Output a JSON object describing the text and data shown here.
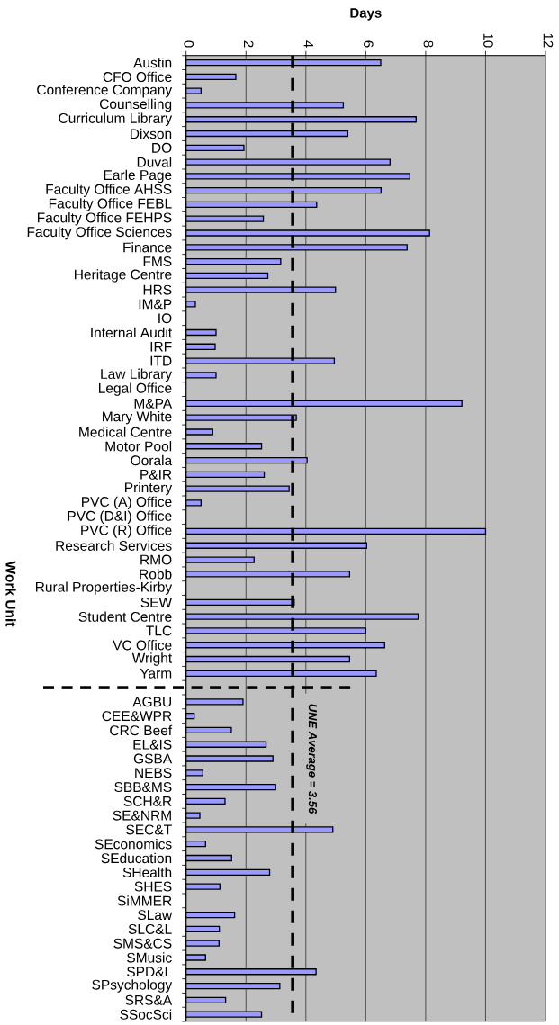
{
  "chart_data": {
    "type": "bar",
    "orientation": "horizontal",
    "xlabel": "Days",
    "ylabel": "Work Unit",
    "categories": [
      "Austin",
      "CFO Office",
      "Conference Company",
      "Counselling",
      "Curriculum Library",
      "Dixson",
      "DO",
      "Duval",
      "Earle Page",
      "Faculty Office AHSS",
      "Faculty Office FEBL",
      "Faculty Office FEHPS",
      "Faculty Office Sciences",
      "Finance",
      "FMS",
      "Heritage Centre",
      "HRS",
      "IM&P",
      "IO",
      "Internal Audit",
      "IRF",
      "ITD",
      "Law Library",
      "Legal Office",
      "M&PA",
      "Mary White",
      "Medical Centre",
      "Motor Pool",
      "Oorala",
      "P&IR",
      "Printery",
      "PVC (A) Office",
      "PVC (D&I) Office",
      "PVC (R) Office",
      "Research Services",
      "RMO",
      "Robb",
      "Rural Properties-Kirby",
      "SEW",
      "Student Centre",
      "TLC",
      "VC Office",
      "Wright",
      "Yarm",
      null,
      "AGBU",
      "CEE&WPR",
      "CRC Beef",
      "EL&IS",
      "GSBA",
      "NEBS",
      "SBB&MS",
      "SCH&R",
      "SE&NRM",
      "SEC&T",
      "SEconomics",
      "SEducation",
      "SHealth",
      "SHES",
      "SiMMER",
      "SLaw",
      "SLC&L",
      "SMS&CS",
      "SMusic",
      "SPD&L",
      "SPsychology",
      "SRS&A",
      "SSocSci"
    ],
    "values": [
      6.5,
      1.66,
      0.5,
      5.25,
      7.68,
      5.4,
      1.93,
      6.81,
      7.47,
      6.51,
      4.36,
      2.58,
      8.13,
      7.38,
      3.16,
      2.73,
      4.99,
      0.31,
      null,
      1.0,
      0.97,
      4.95,
      1.0,
      null,
      9.21,
      3.68,
      0.89,
      2.52,
      4.04,
      2.61,
      3.44,
      0.5,
      null,
      10.0,
      6.03,
      2.27,
      5.46,
      null,
      3.61,
      7.75,
      6.0,
      6.63,
      5.46,
      6.35,
      null,
      1.9,
      0.27,
      1.51,
      2.67,
      2.9,
      0.56,
      2.99,
      1.3,
      0.46,
      4.9,
      0.65,
      1.52,
      2.79,
      1.13,
      null,
      1.62,
      1.11,
      1.1,
      0.65,
      4.34,
      3.13,
      1.32,
      2.52
    ],
    "color": "#9999ff",
    "xlim": [
      0,
      12
    ],
    "xticks": [
      0,
      2,
      4,
      6,
      8,
      10,
      12
    ],
    "grid": "x",
    "ref_lines": [
      {
        "axis": "x",
        "value": 3.56,
        "label": "UNE Average = 3.56",
        "color": "#000000",
        "line_style": "dashed"
      }
    ]
  }
}
